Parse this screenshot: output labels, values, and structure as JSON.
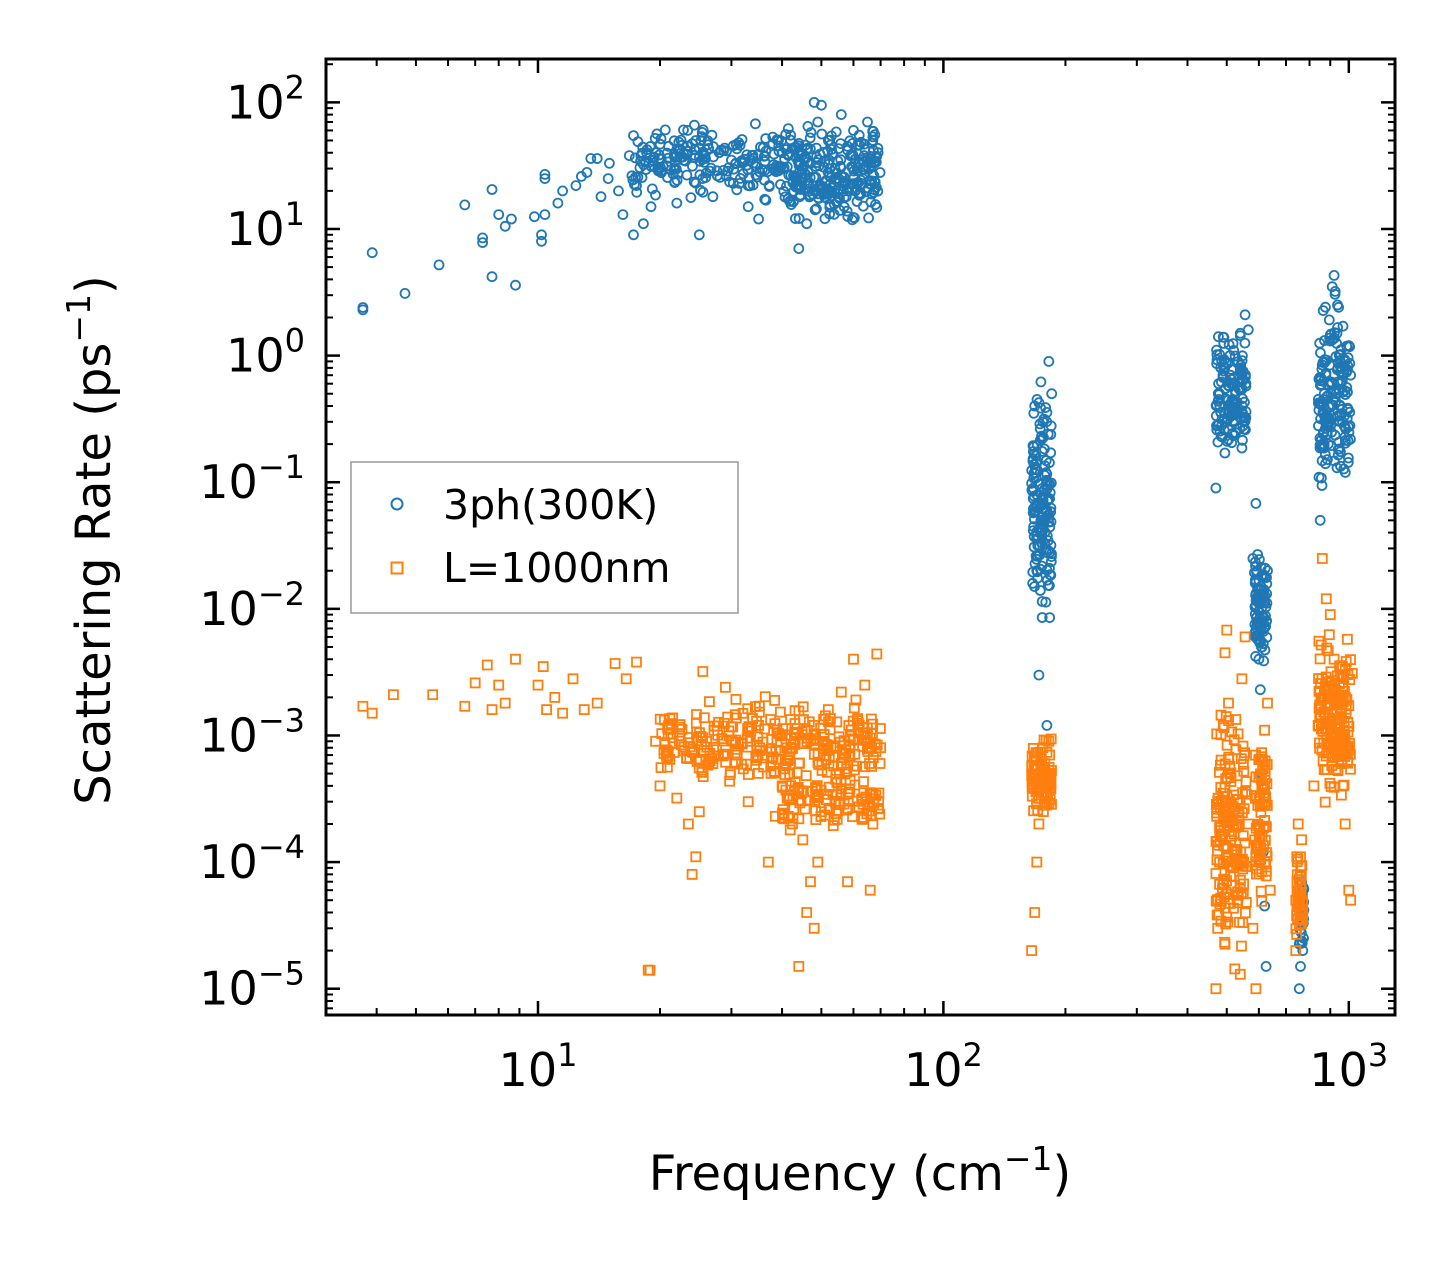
{
  "chart_data": {
    "type": "scatter",
    "title": "",
    "xlabel": "Frequency (cm",
    "xlabel_exp": "−1",
    "xlabel_close": ")",
    "ylabel": "Scattering Rate (ps",
    "ylabel_exp": "−1",
    "ylabel_close": ")",
    "xscale": "log",
    "yscale": "log",
    "xlim": [
      3.0,
      1300
    ],
    "ylim": [
      6.2e-06,
      220
    ],
    "legend_position": "center-left",
    "x_ticks": [
      {
        "base": "10",
        "exp": "1",
        "value": 10
      },
      {
        "base": "10",
        "exp": "2",
        "value": 100
      },
      {
        "base": "10",
        "exp": "3",
        "value": 1000
      }
    ],
    "y_ticks": [
      {
        "base": "10",
        "exp": "2",
        "value": 100
      },
      {
        "base": "10",
        "exp": "1",
        "value": 10
      },
      {
        "base": "10",
        "exp": "0",
        "value": 1
      },
      {
        "base": "10",
        "exp": "−1",
        "value": 0.1
      },
      {
        "base": "10",
        "exp": "−2",
        "value": 0.01
      },
      {
        "base": "10",
        "exp": "−3",
        "value": 0.001
      },
      {
        "base": "10",
        "exp": "−4",
        "value": 0.0001
      },
      {
        "base": "10",
        "exp": "−5",
        "value": 1e-05
      }
    ],
    "series": [
      {
        "name": "3ph(300K)",
        "marker": "circle",
        "color": "#1f77b4",
        "points": [
          [
            3.7,
            2.3
          ],
          [
            3.7,
            2.4
          ],
          [
            3.9,
            6.5
          ],
          [
            4.7,
            3.1
          ],
          [
            5.7,
            5.2
          ],
          [
            6.6,
            15.5
          ],
          [
            7.3,
            7.8
          ],
          [
            7.3,
            8.5
          ],
          [
            7.7,
            4.2
          ],
          [
            7.7,
            20.5
          ],
          [
            8.0,
            13.0
          ],
          [
            8.3,
            10.5
          ],
          [
            8.6,
            12.0
          ],
          [
            8.8,
            3.6
          ],
          [
            9.8,
            12.5
          ],
          [
            10.2,
            8.0
          ],
          [
            10.2,
            9.0
          ],
          [
            10.4,
            13.0
          ],
          [
            10.4,
            25.0
          ],
          [
            10.4,
            27.0
          ],
          [
            11.2,
            16.0
          ],
          [
            11.5,
            20.0
          ],
          [
            12.4,
            22.0
          ],
          [
            12.8,
            26.0
          ],
          [
            13.2,
            28.0
          ],
          [
            13.5,
            36.0
          ],
          [
            14.0,
            36.0
          ],
          [
            14.3,
            18.0
          ],
          [
            14.9,
            25.0
          ],
          [
            15.0,
            33.0
          ],
          [
            15.8,
            20.0
          ],
          [
            16.2,
            13.0
          ],
          [
            16.8,
            38.0
          ],
          [
            17.2,
            9.0
          ],
          [
            17.5,
            22.0
          ],
          [
            18.2,
            11.0
          ],
          [
            19.0,
            15.0
          ],
          [
            19.5,
            40.0
          ],
          [
            21.0,
            45.0
          ],
          [
            22.0,
            16.0
          ],
          [
            23.4,
            60.0
          ],
          [
            24.5,
            50.0
          ],
          [
            25.0,
            9.0
          ],
          [
            27.0,
            18.0
          ],
          [
            28.0,
            40.0
          ],
          [
            30.0,
            35.0
          ],
          [
            33.0,
            15.0
          ],
          [
            35.0,
            12.0
          ],
          [
            38.0,
            30.0
          ],
          [
            40.0,
            40.0
          ],
          [
            42.0,
            55.0
          ],
          [
            44.0,
            7.0
          ],
          [
            46.0,
            11.0
          ],
          [
            47.0,
            33.0
          ],
          [
            48.0,
            100.0
          ],
          [
            49.0,
            70.0
          ],
          [
            50.0,
            95.0
          ],
          [
            52.0,
            50.0
          ],
          [
            54.0,
            30.0
          ],
          [
            56.0,
            80.0
          ],
          [
            58.0,
            45.0
          ],
          [
            60.0,
            60.0
          ],
          [
            62.0,
            55.0
          ],
          [
            65.0,
            70.0
          ],
          [
            67.0,
            50.0
          ],
          [
            69.0,
            40.0
          ],
          [
            168,
            0.4
          ],
          [
            170,
            0.02
          ],
          [
            172,
            0.003
          ],
          [
            174,
            0.0006
          ],
          [
            176,
            0.3
          ],
          [
            178,
            0.06
          ],
          [
            180,
            0.0012
          ],
          [
            182,
            0.9
          ],
          [
            185,
            0.5
          ],
          [
            470,
            0.09
          ],
          [
            480,
            0.5
          ],
          [
            490,
            1.4
          ],
          [
            500,
            0.3
          ],
          [
            510,
            0.7
          ],
          [
            520,
            1.1
          ],
          [
            540,
            1.5
          ],
          [
            555,
            2.1
          ],
          [
            565,
            1.6
          ],
          [
            580,
            0.025
          ],
          [
            590,
            0.068
          ],
          [
            595,
            0.012
          ],
          [
            600,
            0.004
          ],
          [
            605,
            0.0023
          ],
          [
            610,
            0.0005
          ],
          [
            615,
            0.00012
          ],
          [
            620,
            4.5e-05
          ],
          [
            625,
            1.5e-05
          ],
          [
            630,
            0.02
          ],
          [
            755,
            1e-05
          ],
          [
            760,
            1.5e-05
          ],
          [
            765,
            7e-05
          ],
          [
            770,
            2e-05
          ],
          [
            850,
            0.05
          ],
          [
            870,
            0.5
          ],
          [
            890,
            0.2
          ],
          [
            910,
            3.5
          ],
          [
            920,
            4.3
          ],
          [
            935,
            1.5
          ],
          [
            950,
            0.6
          ],
          [
            965,
            0.3
          ],
          [
            980,
            0.9
          ],
          [
            1000,
            1.2
          ],
          [
            1010,
            0.7
          ]
        ],
        "bands": [
          {
            "x": [
              17,
              70
            ],
            "y": [
              15,
              80
            ],
            "n": 340
          },
          {
            "x": [
              40,
              70
            ],
            "y": [
              10,
              40
            ],
            "n": 120
          },
          {
            "x": [
              165,
              185
            ],
            "y": [
              0.004,
              0.9
            ],
            "n": 150
          },
          {
            "x": [
              470,
              560
            ],
            "y": [
              0.09,
              2.1
            ],
            "n": 140
          },
          {
            "x": [
              585,
              630
            ],
            "y": [
              0.0025,
              0.04
            ],
            "n": 90
          },
          {
            "x": [
              755,
              775
            ],
            "y": [
              1.5e-05,
              0.0001
            ],
            "n": 30
          },
          {
            "x": [
              840,
              1010
            ],
            "y": [
              0.05,
              4.3
            ],
            "n": 170
          }
        ]
      },
      {
        "name": "L=1000nm",
        "marker": "square",
        "color": "#ff7f0e",
        "points": [
          [
            3.7,
            0.0017
          ],
          [
            3.9,
            0.0015
          ],
          [
            4.4,
            0.0021
          ],
          [
            5.5,
            0.0021
          ],
          [
            6.6,
            0.0017
          ],
          [
            7.0,
            0.0026
          ],
          [
            7.5,
            0.0036
          ],
          [
            7.7,
            0.0016
          ],
          [
            8.0,
            0.0025
          ],
          [
            8.3,
            0.0018
          ],
          [
            8.8,
            0.004
          ],
          [
            10.0,
            0.0025
          ],
          [
            10.3,
            0.0035
          ],
          [
            10.5,
            0.0016
          ],
          [
            11.0,
            0.002
          ],
          [
            11.5,
            0.0015
          ],
          [
            12.2,
            0.0028
          ],
          [
            13.0,
            0.0016
          ],
          [
            14.0,
            0.0018
          ],
          [
            15.5,
            0.0037
          ],
          [
            16.5,
            0.0028
          ],
          [
            17.5,
            0.0038
          ],
          [
            18.7,
            1.4e-05
          ],
          [
            18.9,
            1.4e-05
          ],
          [
            19.5,
            0.0009
          ],
          [
            20.0,
            0.0004
          ],
          [
            21.0,
            0.0012
          ],
          [
            22.0,
            0.00032
          ],
          [
            23.5,
            0.0002
          ],
          [
            24.0,
            8e-05
          ],
          [
            24.5,
            0.00011
          ],
          [
            25.0,
            0.00025
          ],
          [
            25.5,
            0.0032
          ],
          [
            27.0,
            0.0006
          ],
          [
            29.0,
            0.0024
          ],
          [
            31.0,
            0.0007
          ],
          [
            33.0,
            0.0003
          ],
          [
            35.0,
            0.0012
          ],
          [
            37.0,
            0.0001
          ],
          [
            38.5,
            0.00023
          ],
          [
            40.0,
            0.0004
          ],
          [
            42.0,
            0.0008
          ],
          [
            44.0,
            1.5e-05
          ],
          [
            45.0,
            0.00015
          ],
          [
            46.0,
            4e-05
          ],
          [
            47.0,
            7e-05
          ],
          [
            48.0,
            3e-05
          ],
          [
            49.0,
            0.0001
          ],
          [
            50.0,
            0.00025
          ],
          [
            52.0,
            0.0016
          ],
          [
            54.0,
            0.0003
          ],
          [
            56.0,
            0.0022
          ],
          [
            58.0,
            7e-05
          ],
          [
            60.0,
            0.004
          ],
          [
            62.0,
            0.0012
          ],
          [
            64.0,
            0.0025
          ],
          [
            66.0,
            6e-05
          ],
          [
            67.0,
            0.0002
          ],
          [
            68.5,
            0.0044
          ],
          [
            70.0,
            0.0008
          ],
          [
            165,
            2e-05
          ],
          [
            168,
            4e-05
          ],
          [
            170,
            0.0001
          ],
          [
            172,
            0.0002
          ],
          [
            174,
            0.0004
          ],
          [
            176,
            0.0008
          ],
          [
            178,
            0.0006
          ],
          [
            180,
            0.0003
          ],
          [
            182,
            0.0009
          ],
          [
            184,
            0.0005
          ],
          [
            470,
            1e-05
          ],
          [
            475,
            3e-05
          ],
          [
            480,
            0.0001
          ],
          [
            485,
            0.0003
          ],
          [
            490,
            0.0012
          ],
          [
            495,
            0.0045
          ],
          [
            500,
            0.0068
          ],
          [
            505,
            0.0018
          ],
          [
            510,
            0.0005
          ],
          [
            520,
            0.0002
          ],
          [
            530,
            5e-05
          ],
          [
            540,
            1.3e-05
          ],
          [
            545,
            0.0028
          ],
          [
            555,
            0.006
          ],
          [
            565,
            0.0002
          ],
          [
            580,
            3e-05
          ],
          [
            590,
            1e-05
          ],
          [
            600,
            0.0001
          ],
          [
            610,
            0.0004
          ],
          [
            620,
            0.0011
          ],
          [
            630,
            0.0018
          ],
          [
            640,
            6e-05
          ],
          [
            740,
            2e-05
          ],
          [
            745,
            7e-05
          ],
          [
            750,
            0.0002
          ],
          [
            755,
            5e-05
          ],
          [
            760,
            0.00011
          ],
          [
            765,
            0.00015
          ],
          [
            770,
            4e-05
          ],
          [
            820,
            0.0004
          ],
          [
            840,
            0.0012
          ],
          [
            860,
            0.025
          ],
          [
            880,
            0.012
          ],
          [
            900,
            0.009
          ],
          [
            920,
            0.004
          ],
          [
            940,
            0.0018
          ],
          [
            960,
            0.0006
          ],
          [
            980,
            0.0002
          ],
          [
            1000,
            6e-05
          ],
          [
            1010,
            5e-05
          ],
          [
            1020,
            0.0031
          ]
        ],
        "bands": [
          {
            "x": [
              20,
              70
            ],
            "y": [
              0.0003,
              0.0025
            ],
            "n": 300
          },
          {
            "x": [
              40,
              70
            ],
            "y": [
              0.00015,
              0.0006
            ],
            "n": 100
          },
          {
            "x": [
              165,
              185
            ],
            "y": [
              0.0002,
              0.0011
            ],
            "n": 90
          },
          {
            "x": [
              470,
              560
            ],
            "y": [
              1e-05,
              0.003
            ],
            "n": 170
          },
          {
            "x": [
              585,
              630
            ],
            "y": [
              3e-05,
              0.002
            ],
            "n": 80
          },
          {
            "x": [
              740,
              770
            ],
            "y": [
              2e-05,
              0.00015
            ],
            "n": 40
          },
          {
            "x": [
              840,
              1010
            ],
            "y": [
              0.0002,
              0.008
            ],
            "n": 170
          }
        ]
      }
    ]
  }
}
